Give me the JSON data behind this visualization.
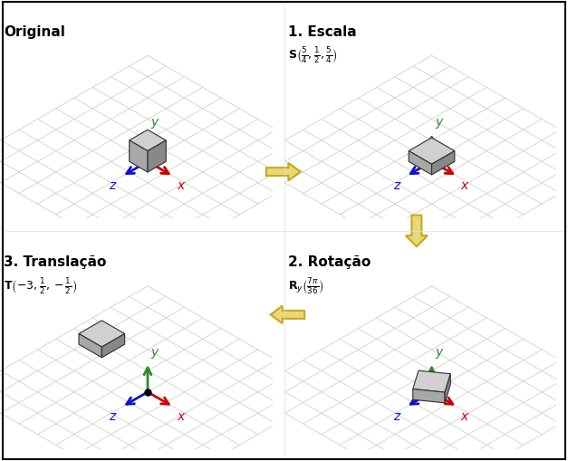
{
  "bg_color": "#ffffff",
  "grid_color": "#c8c8c8",
  "axis_colors": {
    "x": "#cc0000",
    "y": "#2d8a2d",
    "z": "#1010cc"
  },
  "box_face_top": "#d0d0d0",
  "box_face_front": "#a8a8a8",
  "box_face_right": "#888888",
  "box_edge_color": "#303030",
  "arrow_fill": "#e8d878",
  "arrow_edge": "#c8a820",
  "panel_titles": [
    "Original",
    "1. Escala",
    "2. Rotação",
    "3. Translação"
  ],
  "subtitle_escala": "$\\mathbf{S}\\left(\\frac{5}{4},\\frac{1}{2},\\frac{5}{4}\\right)$",
  "subtitle_rotacao": "$\\mathbf{R}_y\\left(\\frac{7\\pi}{36}\\right)$",
  "subtitle_translacao": "$\\mathbf{T}\\left(-3,\\frac{1}{2},-\\frac{1}{2}\\right)$"
}
